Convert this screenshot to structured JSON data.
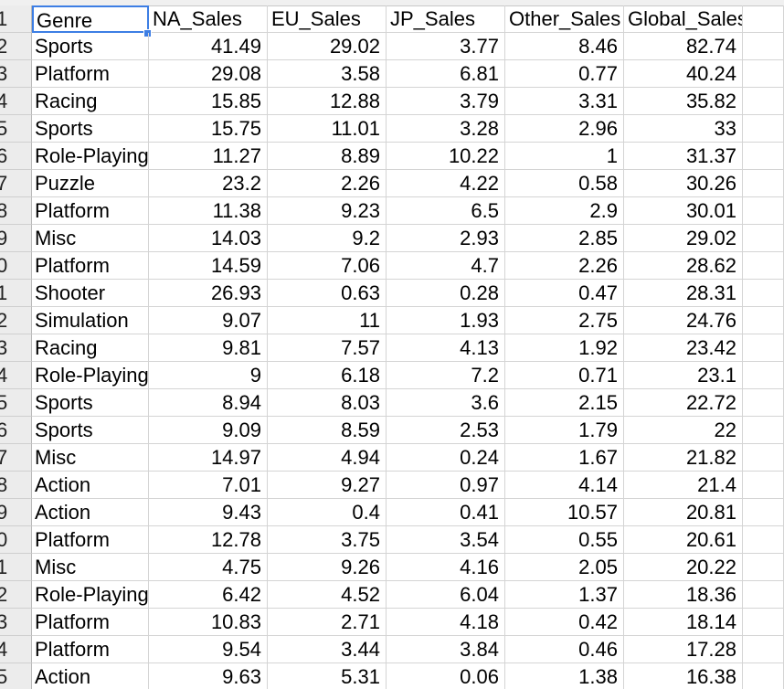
{
  "spreadsheet": {
    "headers": [
      "Genre",
      "NA_Sales",
      "EU_Sales",
      "JP_Sales",
      "Other_Sales",
      "Global_Sales"
    ],
    "row_numbers": [
      "1",
      "2",
      "3",
      "4",
      "5",
      "6",
      "7",
      "8",
      "9",
      "0",
      "1",
      "2",
      "3",
      "4",
      "5",
      "6",
      "7",
      "8",
      "9",
      "0",
      "1",
      "2",
      "3",
      "4",
      "5"
    ],
    "rows": [
      [
        "Sports",
        "41.49",
        "29.02",
        "3.77",
        "8.46",
        "82.74"
      ],
      [
        "Platform",
        "29.08",
        "3.58",
        "6.81",
        "0.77",
        "40.24"
      ],
      [
        "Racing",
        "15.85",
        "12.88",
        "3.79",
        "3.31",
        "35.82"
      ],
      [
        "Sports",
        "15.75",
        "11.01",
        "3.28",
        "2.96",
        "33"
      ],
      [
        "Role-Playing",
        "11.27",
        "8.89",
        "10.22",
        "1",
        "31.37"
      ],
      [
        "Puzzle",
        "23.2",
        "2.26",
        "4.22",
        "0.58",
        "30.26"
      ],
      [
        "Platform",
        "11.38",
        "9.23",
        "6.5",
        "2.9",
        "30.01"
      ],
      [
        "Misc",
        "14.03",
        "9.2",
        "2.93",
        "2.85",
        "29.02"
      ],
      [
        "Platform",
        "14.59",
        "7.06",
        "4.7",
        "2.26",
        "28.62"
      ],
      [
        "Shooter",
        "26.93",
        "0.63",
        "0.28",
        "0.47",
        "28.31"
      ],
      [
        "Simulation",
        "9.07",
        "11",
        "1.93",
        "2.75",
        "24.76"
      ],
      [
        "Racing",
        "9.81",
        "7.57",
        "4.13",
        "1.92",
        "23.42"
      ],
      [
        "Role-Playing",
        "9",
        "6.18",
        "7.2",
        "0.71",
        "23.1"
      ],
      [
        "Sports",
        "8.94",
        "8.03",
        "3.6",
        "2.15",
        "22.72"
      ],
      [
        "Sports",
        "9.09",
        "8.59",
        "2.53",
        "1.79",
        "22"
      ],
      [
        "Misc",
        "14.97",
        "4.94",
        "0.24",
        "1.67",
        "21.82"
      ],
      [
        "Action",
        "7.01",
        "9.27",
        "0.97",
        "4.14",
        "21.4"
      ],
      [
        "Action",
        "9.43",
        "0.4",
        "0.41",
        "10.57",
        "20.81"
      ],
      [
        "Platform",
        "12.78",
        "3.75",
        "3.54",
        "0.55",
        "20.61"
      ],
      [
        "Misc",
        "4.75",
        "9.26",
        "4.16",
        "2.05",
        "20.22"
      ],
      [
        "Role-Playing",
        "6.42",
        "4.52",
        "6.04",
        "1.37",
        "18.36"
      ],
      [
        "Platform",
        "10.83",
        "2.71",
        "4.18",
        "0.42",
        "18.14"
      ],
      [
        "Platform",
        "9.54",
        "3.44",
        "3.84",
        "0.46",
        "17.28"
      ],
      [
        "Action",
        "9.63",
        "5.31",
        "0.06",
        "1.38",
        "16.38"
      ]
    ]
  },
  "colors": {
    "selection": "#3d7ee4",
    "gridline": "#d4d4d4",
    "row_header_bg": "#ececec"
  }
}
